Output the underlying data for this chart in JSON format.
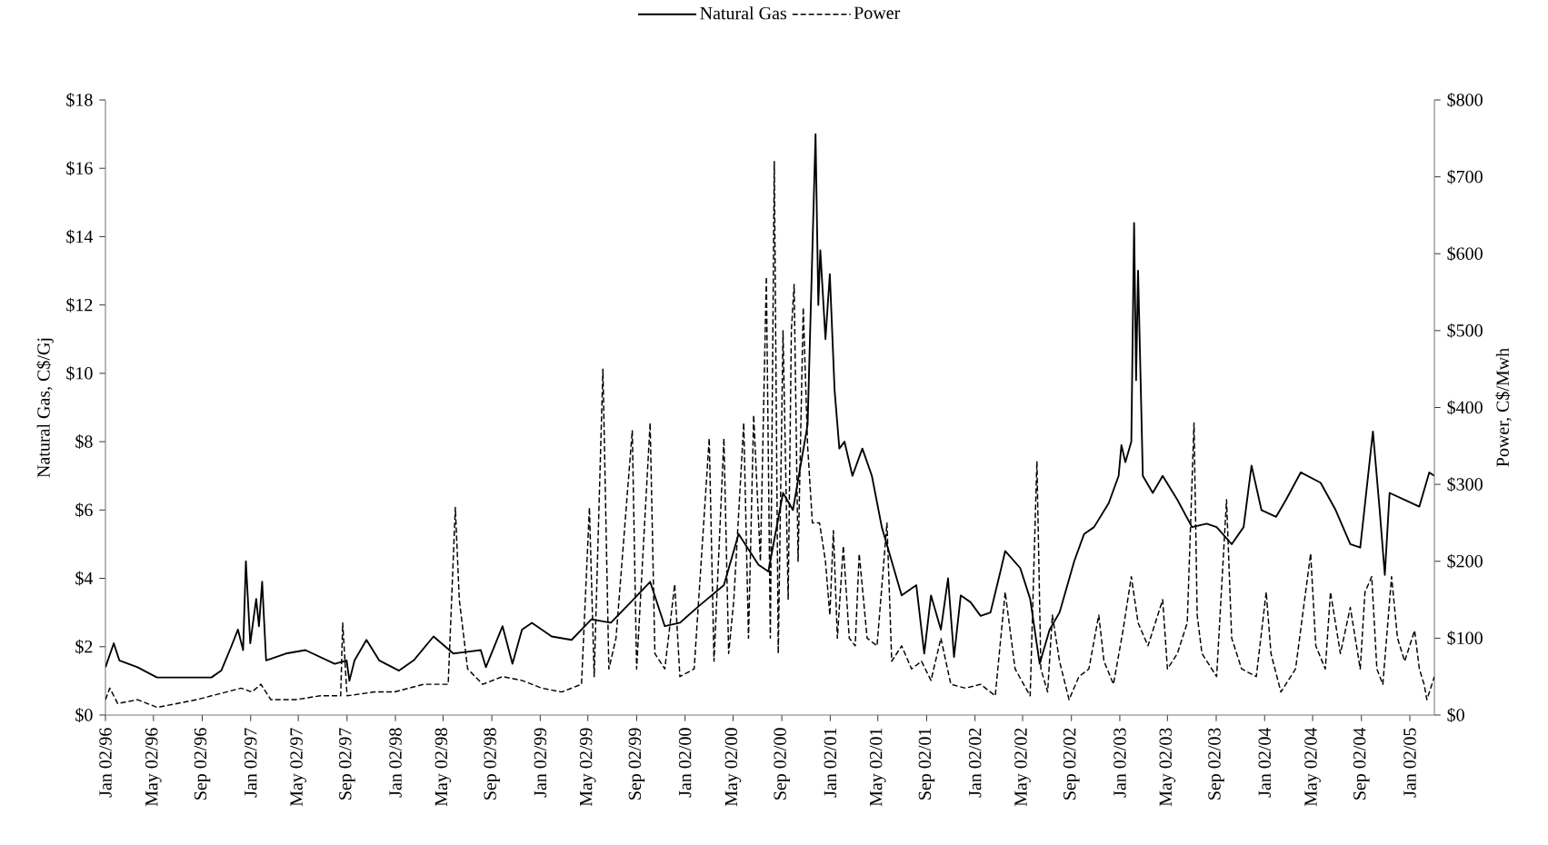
{
  "chart_data": {
    "type": "line",
    "ylabel": "Natural Gas, C$/Gj",
    "y2label": "Power, C$/Mwh",
    "legend": "top",
    "xlim": [
      "1996-01-02",
      "2005-03-05"
    ],
    "xticks": [
      {
        "value": "1996-01-02",
        "label": "Jan 02/96"
      },
      {
        "value": "1996-05-02",
        "label": "May 02/96"
      },
      {
        "value": "1996-09-02",
        "label": "Sep 02/96"
      },
      {
        "value": "1997-01-02",
        "label": "Jan 02/97"
      },
      {
        "value": "1997-05-02",
        "label": "May 02/97"
      },
      {
        "value": "1997-09-02",
        "label": "Sep 02/97"
      },
      {
        "value": "1998-01-02",
        "label": "Jan 02/98"
      },
      {
        "value": "1998-05-02",
        "label": "May 02/98"
      },
      {
        "value": "1998-09-02",
        "label": "Sep 02/98"
      },
      {
        "value": "1999-01-02",
        "label": "Jan 02/99"
      },
      {
        "value": "1999-05-02",
        "label": "May 02/99"
      },
      {
        "value": "1999-09-02",
        "label": "Sep 02/99"
      },
      {
        "value": "2000-01-02",
        "label": "Jan 02/00"
      },
      {
        "value": "2000-05-02",
        "label": "May 02/00"
      },
      {
        "value": "2000-09-02",
        "label": "Sep 02/00"
      },
      {
        "value": "2001-01-02",
        "label": "Jan 02/01"
      },
      {
        "value": "2001-05-02",
        "label": "May 02/01"
      },
      {
        "value": "2001-09-02",
        "label": "Sep 02/01"
      },
      {
        "value": "2002-01-02",
        "label": "Jan 02/02"
      },
      {
        "value": "2002-05-02",
        "label": "May 02/02"
      },
      {
        "value": "2002-09-02",
        "label": "Sep 02/02"
      },
      {
        "value": "2003-01-02",
        "label": "Jan 02/03"
      },
      {
        "value": "2003-05-02",
        "label": "May 02/03"
      },
      {
        "value": "2003-09-02",
        "label": "Sep 02/03"
      },
      {
        "value": "2004-01-02",
        "label": "Jan 02/04"
      },
      {
        "value": "2004-05-02",
        "label": "May 02/04"
      },
      {
        "value": "2004-09-02",
        "label": "Sep 02/04"
      },
      {
        "value": "2005-01-02",
        "label": "Jan 02/05"
      }
    ],
    "ylim": [
      0,
      18
    ],
    "yticks": [
      {
        "value": 0,
        "label": "$0"
      },
      {
        "value": 2,
        "label": "$2"
      },
      {
        "value": 4,
        "label": "$4"
      },
      {
        "value": 6,
        "label": "$6"
      },
      {
        "value": 8,
        "label": "$8"
      },
      {
        "value": 10,
        "label": "$10"
      },
      {
        "value": 12,
        "label": "$12"
      },
      {
        "value": 14,
        "label": "$14"
      },
      {
        "value": 16,
        "label": "$16"
      },
      {
        "value": 18,
        "label": "$18"
      }
    ],
    "y2lim": [
      0,
      800
    ],
    "y2ticks": [
      {
        "value": 0,
        "label": "$0"
      },
      {
        "value": 100,
        "label": "$100"
      },
      {
        "value": 200,
        "label": "$200"
      },
      {
        "value": 300,
        "label": "$300"
      },
      {
        "value": 400,
        "label": "$400"
      },
      {
        "value": 500,
        "label": "$500"
      },
      {
        "value": 600,
        "label": "$600"
      },
      {
        "value": 700,
        "label": "$700"
      },
      {
        "value": 800,
        "label": "$800"
      }
    ],
    "series": [
      {
        "name": "Natural Gas",
        "color": "#000000",
        "line_style": "solid",
        "x": [
          "1996-01-02",
          "1996-01-23",
          "1996-02-06",
          "1996-03-23",
          "1996-05-11",
          "1996-07-25",
          "1996-09-25",
          "1996-10-20",
          "1996-11-14",
          "1996-12-01",
          "1996-12-14",
          "1996-12-21",
          "1997-01-01",
          "1997-01-16",
          "1997-01-23",
          "1997-01-31",
          "1997-02-10",
          "1997-04-01",
          "1997-05-20",
          "1997-08-02",
          "1997-09-01",
          "1997-09-08",
          "1997-09-21",
          "1997-10-21",
          "1997-11-22",
          "1998-01-11",
          "1998-02-17",
          "1998-04-08",
          "1998-05-28",
          "1998-08-05",
          "1998-08-18",
          "1998-09-29",
          "1998-10-24",
          "1998-11-17",
          "1998-12-12",
          "1999-01-31",
          "1999-03-22",
          "1999-05-11",
          "1999-06-29",
          "1999-08-18",
          "1999-10-06",
          "1999-11-12",
          "1999-12-20",
          "2000-02-07",
          "2000-04-09",
          "2000-05-16",
          "2000-07-05",
          "2000-07-30",
          "2000-09-05",
          "2000-09-30",
          "2000-11-06",
          "2000-11-26",
          "2000-12-03",
          "2000-12-08",
          "2000-12-21",
          "2001-01-01",
          "2001-01-13",
          "2001-01-25",
          "2001-02-07",
          "2001-02-27",
          "2001-03-24",
          "2001-04-17",
          "2001-05-12",
          "2001-06-06",
          "2001-07-01",
          "2001-08-07",
          "2001-08-27",
          "2001-09-13",
          "2001-10-08",
          "2001-10-26",
          "2001-11-10",
          "2001-11-27",
          "2001-12-22",
          "2002-01-16",
          "2002-02-10",
          "2002-03-07",
          "2002-03-19",
          "2002-04-26",
          "2002-05-21",
          "2002-06-14",
          "2002-07-09",
          "2002-08-03",
          "2002-09-09",
          "2002-10-04",
          "2002-10-29",
          "2002-12-05",
          "2002-12-30",
          "2003-01-06",
          "2003-01-16",
          "2003-01-31",
          "2003-02-07",
          "2003-02-12",
          "2003-02-17",
          "2003-03-01",
          "2003-03-26",
          "2003-04-20",
          "2003-05-27",
          "2003-07-03",
          "2003-08-09",
          "2003-09-03",
          "2003-10-11",
          "2003-11-10",
          "2003-11-30",
          "2003-12-25",
          "2004-01-31",
          "2004-02-25",
          "2004-04-02",
          "2004-05-22",
          "2004-06-29",
          "2004-08-05",
          "2004-08-30",
          "2004-10-01",
          "2004-10-18",
          "2004-10-31",
          "2004-11-12",
          "2004-12-20",
          "2005-01-26",
          "2005-02-20",
          "2005-03-05"
        ],
        "values": [
          1.4,
          2.1,
          1.6,
          1.4,
          1.1,
          1.1,
          1.1,
          1.3,
          2.0,
          2.5,
          1.9,
          4.5,
          2.1,
          3.4,
          2.6,
          3.9,
          1.6,
          1.8,
          1.9,
          1.5,
          1.6,
          1.0,
          1.6,
          2.2,
          1.6,
          1.3,
          1.6,
          2.3,
          1.8,
          1.9,
          1.4,
          2.6,
          1.5,
          2.5,
          2.7,
          2.3,
          2.2,
          2.8,
          2.7,
          3.3,
          3.9,
          2.6,
          2.7,
          3.2,
          3.8,
          5.3,
          4.4,
          4.2,
          6.5,
          6.0,
          8.5,
          17.0,
          12.0,
          13.6,
          11.0,
          12.9,
          9.5,
          7.8,
          8.0,
          7.0,
          7.8,
          7.0,
          5.5,
          4.5,
          3.5,
          3.8,
          1.8,
          3.5,
          2.5,
          4.0,
          1.7,
          3.5,
          3.3,
          2.9,
          3.0,
          4.2,
          4.8,
          4.3,
          3.4,
          1.5,
          2.5,
          3.0,
          4.5,
          5.3,
          5.5,
          6.2,
          7.0,
          7.9,
          7.4,
          8.0,
          14.4,
          9.8,
          13.0,
          7.0,
          6.5,
          7.0,
          6.3,
          5.5,
          5.6,
          5.5,
          5.0,
          5.5,
          7.3,
          6.0,
          5.8,
          6.3,
          7.1,
          6.8,
          6.0,
          5.0,
          4.9,
          8.3,
          6.0,
          4.1,
          6.5,
          6.3,
          6.1,
          7.1,
          7.0
        ]
      },
      {
        "name": "Power",
        "color": "#000000",
        "line_style": "dashed",
        "axis": "y2",
        "x": [
          "1996-01-02",
          "1996-01-13",
          "1996-02-02",
          "1996-03-23",
          "1996-05-11",
          "1996-07-01",
          "1996-08-19",
          "1996-09-25",
          "1996-11-02",
          "1996-12-09",
          "1997-01-05",
          "1997-01-28",
          "1997-02-22",
          "1997-04-25",
          "1997-06-26",
          "1997-08-17",
          "1997-08-22",
          "1997-09-02",
          "1997-11-09",
          "1997-12-30",
          "1998-03-14",
          "1998-05-15",
          "1998-06-02",
          "1998-06-12",
          "1998-07-03",
          "1998-08-10",
          "1998-09-29",
          "1998-11-17",
          "1999-01-06",
          "1999-02-25",
          "1999-04-16",
          "1999-05-06",
          "1999-05-18",
          "1999-06-09",
          "1999-06-24",
          "1999-07-12",
          "1999-08-22",
          "1999-09-02",
          "1999-10-06",
          "1999-10-18",
          "1999-11-12",
          "1999-12-07",
          "1999-12-20",
          "2000-01-25",
          "2000-03-03",
          "2000-03-15",
          "2000-04-09",
          "2000-04-21",
          "2000-05-04",
          "2000-05-29",
          "2000-06-10",
          "2000-06-23",
          "2000-07-10",
          "2000-07-25",
          "2000-08-04",
          "2000-08-14",
          "2000-08-24",
          "2000-09-05",
          "2000-09-18",
          "2000-09-26",
          "2000-10-03",
          "2000-10-13",
          "2000-10-26",
          "2000-11-06",
          "2000-11-18",
          "2000-12-06",
          "2000-12-21",
          "2001-01-01",
          "2001-01-10",
          "2001-01-20",
          "2001-02-04",
          "2001-02-19",
          "2001-03-06",
          "2001-03-16",
          "2001-04-05",
          "2001-04-30",
          "2001-05-25",
          "2001-06-06",
          "2001-07-01",
          "2001-07-26",
          "2001-08-20",
          "2001-09-13",
          "2001-10-08",
          "2001-11-02",
          "2001-12-09",
          "2002-01-16",
          "2002-02-22",
          "2002-03-19",
          "2002-04-13",
          "2002-05-21",
          "2002-06-07",
          "2002-06-17",
          "2002-07-04",
          "2002-07-16",
          "2002-08-03",
          "2002-08-27",
          "2002-09-21",
          "2002-10-16",
          "2002-11-10",
          "2002-11-23",
          "2002-12-17",
          "2003-01-10",
          "2003-01-31",
          "2003-02-17",
          "2003-03-14",
          "2003-04-20",
          "2003-05-02",
          "2003-05-27",
          "2003-06-21",
          "2003-07-08",
          "2003-07-16",
          "2003-07-28",
          "2003-09-03",
          "2003-09-28",
          "2003-10-11",
          "2003-11-05",
          "2003-12-12",
          "2004-01-06",
          "2004-01-18",
          "2004-02-12",
          "2004-03-20",
          "2004-04-27",
          "2004-05-10",
          "2004-06-03",
          "2004-06-16",
          "2004-07-11",
          "2004-08-05",
          "2004-08-30",
          "2004-09-11",
          "2004-09-28",
          "2004-10-11",
          "2004-10-26",
          "2004-11-17",
          "2004-12-02",
          "2004-12-20",
          "2005-01-14",
          "2005-01-26",
          "2005-02-07",
          "2005-02-14",
          "2005-03-05"
        ],
        "values": [
          20,
          35,
          15,
          20,
          10,
          15,
          20,
          25,
          30,
          35,
          30,
          40,
          20,
          20,
          25,
          25,
          120,
          25,
          30,
          30,
          40,
          40,
          270,
          150,
          60,
          40,
          50,
          45,
          35,
          30,
          40,
          270,
          50,
          450,
          60,
          100,
          370,
          60,
          380,
          80,
          60,
          170,
          50,
          60,
          360,
          70,
          360,
          80,
          150,
          380,
          100,
          390,
          200,
          570,
          100,
          720,
          80,
          500,
          150,
          500,
          560,
          200,
          530,
          350,
          250,
          250,
          200,
          130,
          240,
          100,
          220,
          100,
          90,
          210,
          100,
          90,
          250,
          70,
          90,
          60,
          70,
          45,
          100,
          40,
          35,
          40,
          25,
          160,
          60,
          25,
          330,
          60,
          30,
          130,
          70,
          20,
          50,
          60,
          130,
          70,
          40,
          110,
          180,
          120,
          90,
          150,
          60,
          80,
          120,
          380,
          130,
          80,
          50,
          280,
          100,
          60,
          50,
          160,
          80,
          30,
          60,
          210,
          90,
          60,
          160,
          80,
          140,
          60,
          160,
          180,
          60,
          40,
          180,
          100,
          70,
          110,
          60,
          40,
          20,
          50
        ]
      }
    ]
  }
}
